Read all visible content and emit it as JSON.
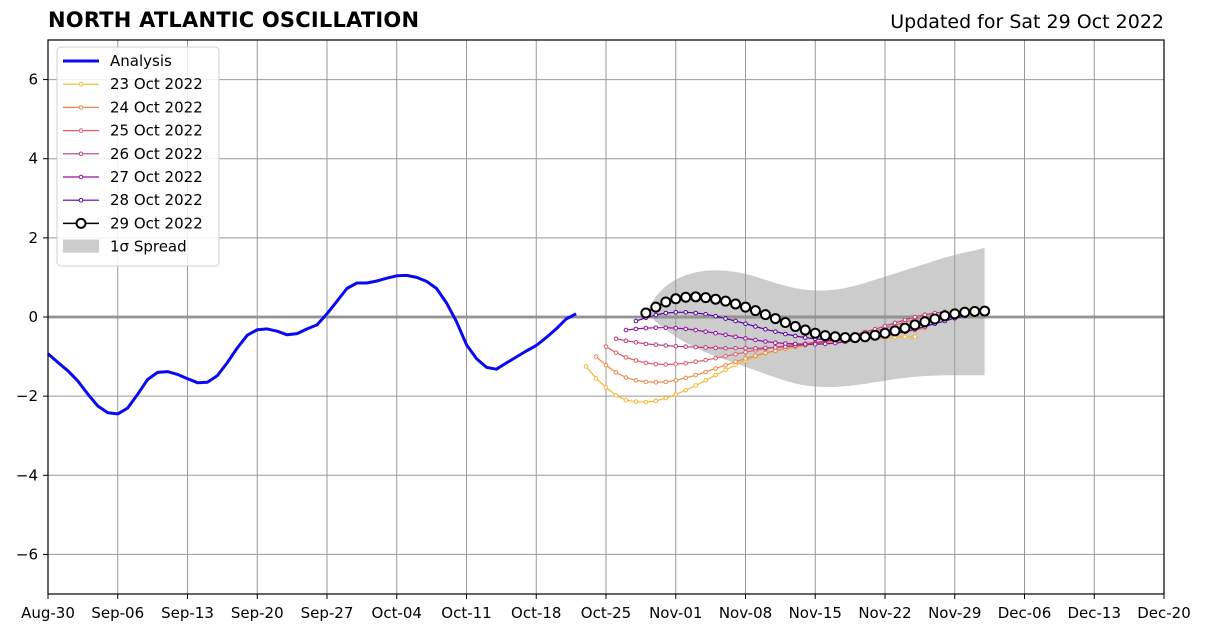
{
  "title": "NORTH ATLANTIC OSCILLATION",
  "subtitle": "Updated for Sat 29 Oct 2022",
  "chart_data": {
    "type": "line",
    "title": "NORTH ATLANTIC OSCILLATION",
    "xlabel": "",
    "ylabel": "",
    "x_ticks": [
      "Aug-30",
      "Sep-06",
      "Sep-13",
      "Sep-20",
      "Sep-27",
      "Oct-04",
      "Oct-11",
      "Oct-18",
      "Oct-25",
      "Nov-01",
      "Nov-08",
      "Nov-15",
      "Nov-22",
      "Nov-29",
      "Dec-06",
      "Dec-13",
      "Dec-20"
    ],
    "y_ticks": [
      -6,
      -4,
      -2,
      0,
      2,
      4,
      6
    ],
    "y_tick_labels": [
      "−6",
      "−4",
      "−2",
      "0",
      "2",
      "4",
      "6"
    ],
    "xlim_days": [
      0,
      112
    ],
    "ylim": [
      -7,
      7
    ],
    "grid": true,
    "legend_position": "top-left",
    "colors": {
      "analysis": "#0a0af0",
      "23 Oct 2022": "#f5b731",
      "24 Oct 2022": "#ed8947",
      "25 Oct 2022": "#de5f65",
      "26 Oct 2022": "#bc3b7e",
      "27 Oct 2022": "#9511a1",
      "28 Oct 2022": "#5c02a2",
      "29 Oct 2022": "#000000",
      "spread": "#cccccc",
      "grid": "#999999"
    },
    "legend": [
      {
        "label": "Analysis",
        "style": "analysis"
      },
      {
        "label": "23 Oct 2022",
        "style": "23 Oct 2022"
      },
      {
        "label": "24 Oct 2022",
        "style": "24 Oct 2022"
      },
      {
        "label": "25 Oct 2022",
        "style": "25 Oct 2022"
      },
      {
        "label": "26 Oct 2022",
        "style": "26 Oct 2022"
      },
      {
        "label": "27 Oct 2022",
        "style": "27 Oct 2022"
      },
      {
        "label": "28 Oct 2022",
        "style": "28 Oct 2022"
      },
      {
        "label": "29 Oct 2022",
        "style": "29 Oct 2022"
      },
      {
        "label": "1σ Spread",
        "style": "spread"
      }
    ],
    "analysis": {
      "name": "Analysis",
      "points": [
        [
          0,
          -0.93
        ],
        [
          1,
          -1.15
        ],
        [
          2,
          -1.36
        ],
        [
          3,
          -1.62
        ],
        [
          4,
          -1.95
        ],
        [
          5,
          -2.25
        ],
        [
          6,
          -2.42
        ],
        [
          7,
          -2.45
        ],
        [
          8,
          -2.3
        ],
        [
          9,
          -1.95
        ],
        [
          10,
          -1.58
        ],
        [
          11,
          -1.4
        ],
        [
          12,
          -1.38
        ],
        [
          13,
          -1.45
        ],
        [
          14,
          -1.56
        ],
        [
          15,
          -1.66
        ],
        [
          16,
          -1.65
        ],
        [
          17,
          -1.48
        ],
        [
          18,
          -1.15
        ],
        [
          19,
          -0.78
        ],
        [
          20,
          -0.46
        ],
        [
          21,
          -0.32
        ],
        [
          22,
          -0.3
        ],
        [
          23,
          -0.36
        ],
        [
          24,
          -0.45
        ],
        [
          25,
          -0.42
        ],
        [
          26,
          -0.3
        ],
        [
          27,
          -0.2
        ],
        [
          28,
          0.08
        ],
        [
          29,
          0.4
        ],
        [
          30,
          0.72
        ],
        [
          31,
          0.86
        ],
        [
          32,
          0.86
        ],
        [
          33,
          0.91
        ],
        [
          34,
          0.98
        ],
        [
          35,
          1.04
        ],
        [
          36,
          1.05
        ],
        [
          37,
          1.0
        ],
        [
          38,
          0.9
        ],
        [
          39,
          0.72
        ],
        [
          40,
          0.35
        ],
        [
          41,
          -0.12
        ],
        [
          42,
          -0.7
        ],
        [
          43,
          -1.05
        ],
        [
          44,
          -1.27
        ],
        [
          45,
          -1.32
        ],
        [
          46,
          -1.16
        ],
        [
          47,
          -1.01
        ],
        [
          48,
          -0.86
        ],
        [
          49,
          -0.72
        ],
        [
          50,
          -0.52
        ],
        [
          51,
          -0.3
        ],
        [
          52,
          -0.05
        ],
        [
          53,
          0.08
        ]
      ]
    },
    "forecasts": [
      {
        "name": "23 Oct 2022",
        "start_day": 54,
        "values": [
          -1.25,
          -1.55,
          -1.78,
          -1.98,
          -2.1,
          -2.14,
          -2.15,
          -2.12,
          -2.05,
          -1.96,
          -1.85,
          -1.73,
          -1.6,
          -1.47,
          -1.34,
          -1.21,
          -1.1,
          -1.0,
          -0.92,
          -0.86,
          -0.8,
          -0.76,
          -0.72,
          -0.69,
          -0.66,
          -0.63,
          -0.6,
          -0.58,
          -0.56,
          -0.54,
          -0.52,
          -0.51,
          -0.5,
          -0.5
        ]
      },
      {
        "name": "24 Oct 2022",
        "start_day": 55,
        "values": [
          -1.0,
          -1.22,
          -1.4,
          -1.53,
          -1.6,
          -1.64,
          -1.65,
          -1.64,
          -1.6,
          -1.54,
          -1.47,
          -1.39,
          -1.3,
          -1.22,
          -1.13,
          -1.05,
          -0.98,
          -0.91,
          -0.85,
          -0.8,
          -0.75,
          -0.71,
          -0.67,
          -0.64,
          -0.61,
          -0.59,
          -0.57,
          -0.55,
          -0.52,
          -0.48,
          -0.43,
          -0.38,
          -0.33,
          -0.28
        ]
      },
      {
        "name": "25 Oct 2022",
        "start_day": 56,
        "values": [
          -0.75,
          -0.9,
          -1.02,
          -1.1,
          -1.16,
          -1.19,
          -1.2,
          -1.19,
          -1.17,
          -1.13,
          -1.09,
          -1.04,
          -0.99,
          -0.94,
          -0.89,
          -0.84,
          -0.8,
          -0.76,
          -0.73,
          -0.7,
          -0.67,
          -0.64,
          -0.61,
          -0.57,
          -0.53,
          -0.48,
          -0.42,
          -0.36,
          -0.29,
          -0.21,
          -0.13,
          -0.06,
          0.0,
          0.05
        ]
      },
      {
        "name": "26 Oct 2022",
        "start_day": 57,
        "values": [
          -0.55,
          -0.6,
          -0.64,
          -0.68,
          -0.7,
          -0.72,
          -0.74,
          -0.75,
          -0.76,
          -0.77,
          -0.78,
          -0.79,
          -0.79,
          -0.79,
          -0.79,
          -0.78,
          -0.77,
          -0.75,
          -0.73,
          -0.7,
          -0.66,
          -0.62,
          -0.57,
          -0.51,
          -0.45,
          -0.38,
          -0.31,
          -0.23,
          -0.15,
          -0.07,
          0.0,
          0.06,
          0.1,
          0.13
        ]
      },
      {
        "name": "27 Oct 2022",
        "start_day": 58,
        "values": [
          -0.33,
          -0.3,
          -0.28,
          -0.27,
          -0.27,
          -0.28,
          -0.3,
          -0.33,
          -0.37,
          -0.41,
          -0.45,
          -0.5,
          -0.54,
          -0.58,
          -0.62,
          -0.65,
          -0.67,
          -0.68,
          -0.69,
          -0.69,
          -0.68,
          -0.66,
          -0.63,
          -0.59,
          -0.54,
          -0.48,
          -0.42,
          -0.35,
          -0.28,
          -0.2,
          -0.12,
          -0.05,
          0.02,
          0.08
        ]
      },
      {
        "name": "28 Oct 2022",
        "start_day": 59,
        "values": [
          -0.1,
          -0.02,
          0.05,
          0.1,
          0.12,
          0.12,
          0.1,
          0.07,
          0.02,
          -0.04,
          -0.1,
          -0.17,
          -0.24,
          -0.31,
          -0.37,
          -0.43,
          -0.48,
          -0.52,
          -0.55,
          -0.57,
          -0.58,
          -0.58,
          -0.57,
          -0.55,
          -0.52,
          -0.48,
          -0.43,
          -0.37,
          -0.31,
          -0.24,
          -0.17,
          -0.1,
          -0.03,
          0.03
        ]
      },
      {
        "name": "29 Oct 2022",
        "start_day": 60,
        "values": [
          0.1,
          0.25,
          0.38,
          0.46,
          0.5,
          0.51,
          0.49,
          0.45,
          0.4,
          0.33,
          0.25,
          0.16,
          0.06,
          -0.04,
          -0.14,
          -0.24,
          -0.33,
          -0.41,
          -0.47,
          -0.5,
          -0.52,
          -0.52,
          -0.5,
          -0.46,
          -0.41,
          -0.35,
          -0.28,
          -0.2,
          -0.12,
          -0.05,
          0.03,
          0.08,
          0.12,
          0.14,
          0.15
        ]
      }
    ],
    "spread": {
      "name": "1σ Spread",
      "start_day": 60,
      "upper": [
        0.1,
        0.52,
        0.78,
        0.95,
        1.06,
        1.13,
        1.17,
        1.18,
        1.17,
        1.14,
        1.09,
        1.02,
        0.94,
        0.86,
        0.79,
        0.73,
        0.69,
        0.67,
        0.67,
        0.69,
        0.73,
        0.79,
        0.86,
        0.94,
        1.02,
        1.1,
        1.18,
        1.26,
        1.34,
        1.42,
        1.5,
        1.57,
        1.63,
        1.68,
        1.75
      ],
      "lower": [
        0.1,
        -0.12,
        -0.32,
        -0.5,
        -0.65,
        -0.78,
        -0.89,
        -0.99,
        -1.08,
        -1.17,
        -1.26,
        -1.35,
        -1.44,
        -1.53,
        -1.61,
        -1.68,
        -1.73,
        -1.76,
        -1.77,
        -1.77,
        -1.75,
        -1.72,
        -1.69,
        -1.65,
        -1.61,
        -1.57,
        -1.54,
        -1.51,
        -1.49,
        -1.48,
        -1.47,
        -1.47,
        -1.47,
        -1.47,
        -1.47
      ]
    }
  }
}
